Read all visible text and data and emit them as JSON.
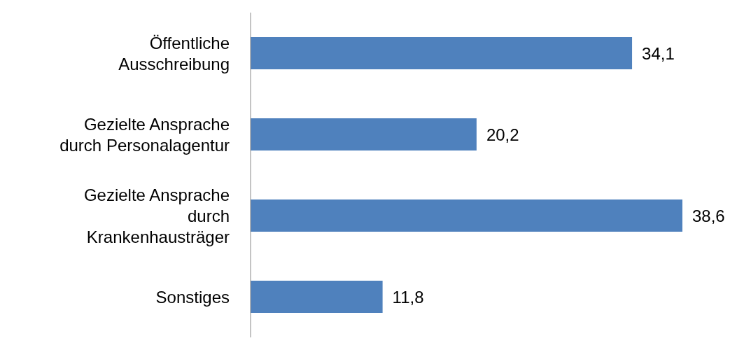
{
  "chart_data": {
    "type": "bar",
    "orientation": "horizontal",
    "categories": [
      "Öffentliche Ausschreibung",
      "Gezielte Ansprache durch Personalagentur",
      "Gezielte Ansprache durch Krankenhausträger",
      "Sonstiges"
    ],
    "values": [
      34.1,
      20.2,
      38.6,
      11.8
    ],
    "value_labels": [
      "34,1",
      "20,2",
      "38,6",
      "11,8"
    ],
    "color": "#4f81bd"
  }
}
